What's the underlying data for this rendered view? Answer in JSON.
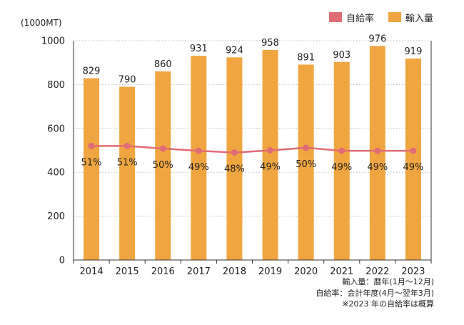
{
  "legend": {
    "self_sufficiency_label": "自給率",
    "imports_label": "輸入量"
  },
  "colors": {
    "bar": "#F0A640",
    "line": "#E06C75",
    "grid": "#BBBBBB",
    "axis": "#333333"
  },
  "notes": {
    "line1": "輸入量：暦年(1月～12月)",
    "line2": "自給率：会計年度(4月～翌年3月)",
    "line3": "※2023 年の自給率は概算"
  },
  "chart_data": {
    "type": "bar",
    "unit_label": "(1000MT)",
    "categories": [
      "2014",
      "2015",
      "2016",
      "2017",
      "2018",
      "2019",
      "2020",
      "2021",
      "2022",
      "2023"
    ],
    "series": [
      {
        "name": "輸入量",
        "type": "bar",
        "values": [
          829,
          790,
          860,
          931,
          924,
          958,
          891,
          903,
          976,
          919
        ]
      },
      {
        "name": "自給率",
        "type": "line",
        "values": [
          51,
          51,
          50,
          49,
          48,
          49,
          50,
          49,
          49,
          49
        ],
        "labels": [
          "51%",
          "51%",
          "50%",
          "49%",
          "48%",
          "49%",
          "50%",
          "49%",
          "49%",
          "49%"
        ],
        "plotted_on_left_axis_at": [
          520,
          520,
          508,
          498,
          490,
          500,
          512,
          498,
          498,
          498
        ]
      }
    ],
    "ylim": [
      0,
      1000
    ],
    "yticks": [
      0,
      200,
      400,
      600,
      800,
      1000
    ],
    "grid": true,
    "legend_position": "top-right"
  }
}
